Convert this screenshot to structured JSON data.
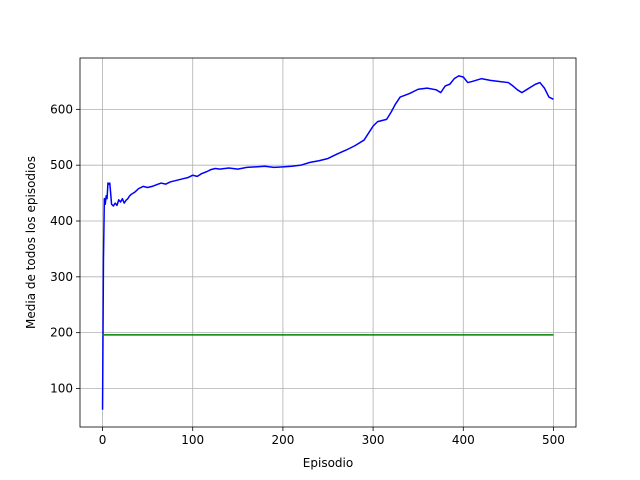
{
  "chart_data": {
    "type": "line",
    "title": "",
    "xlabel": "Episodio",
    "ylabel": "Media de todos los episodios",
    "xlim": [
      -25,
      525
    ],
    "ylim": [
      31,
      692
    ],
    "xticks": [
      0,
      100,
      200,
      300,
      400,
      500
    ],
    "yticks": [
      100,
      200,
      300,
      400,
      500,
      600
    ],
    "grid": true,
    "legend": "none",
    "series": [
      {
        "color": "#0000ff",
        "x": [
          0,
          1,
          2,
          3,
          4,
          5,
          6,
          7,
          8,
          9,
          10,
          12,
          14,
          16,
          18,
          20,
          22,
          24,
          26,
          28,
          30,
          32,
          34,
          36,
          38,
          40,
          45,
          50,
          55,
          60,
          65,
          70,
          75,
          80,
          85,
          90,
          95,
          100,
          105,
          110,
          115,
          120,
          125,
          130,
          140,
          150,
          160,
          170,
          180,
          190,
          200,
          210,
          220,
          230,
          240,
          250,
          260,
          270,
          280,
          290,
          300,
          305,
          310,
          315,
          320,
          325,
          330,
          340,
          350,
          360,
          370,
          375,
          380,
          385,
          390,
          395,
          400,
          405,
          410,
          420,
          430,
          440,
          450,
          455,
          460,
          465,
          470,
          475,
          480,
          485,
          490,
          495,
          500
        ],
        "y": [
          62,
          330,
          440,
          430,
          445,
          440,
          468,
          466,
          468,
          450,
          430,
          427,
          432,
          428,
          438,
          434,
          440,
          432,
          437,
          440,
          445,
          448,
          450,
          452,
          455,
          458,
          462,
          460,
          462,
          465,
          468,
          466,
          470,
          472,
          474,
          476,
          478,
          482,
          480,
          485,
          488,
          492,
          494,
          493,
          495,
          493,
          496,
          497,
          498,
          496,
          497,
          498,
          500,
          505,
          508,
          512,
          520,
          527,
          535,
          545,
          570,
          578,
          580,
          582,
          595,
          610,
          622,
          628,
          636,
          638,
          635,
          630,
          642,
          645,
          655,
          660,
          658,
          648,
          650,
          655,
          652,
          650,
          648,
          642,
          635,
          630,
          635,
          640,
          645,
          648,
          638,
          622,
          618
        ]
      },
      {
        "color": "#008000",
        "x": [
          0,
          500
        ],
        "y": [
          196,
          196
        ]
      }
    ]
  }
}
